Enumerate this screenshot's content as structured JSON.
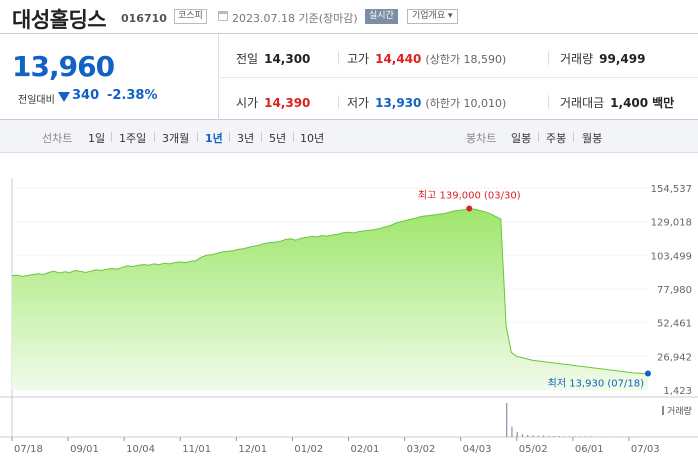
{
  "header": {
    "name": "대성홀딩스",
    "code": "016710",
    "market_badge": "코스피",
    "date": "2023.07.18 기준(장마감)",
    "live_button": "실시간",
    "info_button": "기업개요 ▾"
  },
  "price": {
    "current": "13,960",
    "change_label": "전일대비",
    "change_value": "340",
    "change_pct": "-2.38%"
  },
  "stats": {
    "prev_close": {
      "label": "전일",
      "value": "14,300"
    },
    "high": {
      "label": "고가",
      "value": "14,440",
      "sub": "(상한가 18,590)"
    },
    "volume": {
      "label": "거래량",
      "value": "99,499"
    },
    "open": {
      "label": "시가",
      "value": "14,390"
    },
    "low": {
      "label": "저가",
      "value": "13,930",
      "sub": "(하한가 10,010)"
    },
    "amount": {
      "label": "거래대금",
      "value": "1,400",
      "unit": "백만"
    }
  },
  "period_bar": {
    "line_label": "선차트",
    "line_items": [
      "1일",
      "1주일",
      "3개월",
      "1년",
      "3년",
      "5년",
      "10년"
    ],
    "active": "1년",
    "candle_label": "봉차트",
    "candle_items": [
      "일봉",
      "주봉",
      "월봉"
    ]
  },
  "colors": {
    "accent_blue": "#1261c4",
    "up_red": "#e02020",
    "area_line": "#6cc440",
    "area_fill_top": "#9ee66b",
    "area_fill_bottom": "#f1fbe9"
  },
  "chart_data": {
    "type": "area",
    "ylim": [
      1423,
      154537
    ],
    "y_ticks": [
      "154,537",
      "129,018",
      "103,499",
      "77,980",
      "52,461",
      "26,942",
      "1,423"
    ],
    "x_ticks": [
      "07/18",
      "09/01",
      "10/04",
      "11/01",
      "12/01",
      "01/02",
      "02/01",
      "03/02",
      "04/03",
      "05/02",
      "06/01",
      "07/03"
    ],
    "high_label": "최고 139,000 (03/30)",
    "low_label": "최저 13,930 (07/18)",
    "volume_label": "거래량",
    "series": [
      {
        "values": [
          88000,
          88500,
          87500,
          88200,
          89000,
          89500,
          89000,
          90500,
          91500,
          90000,
          91000,
          90500,
          92000,
          91500,
          90500,
          91500,
          92500,
          92000,
          93000,
          93500,
          93000,
          94500,
          95500,
          95000,
          96000,
          96500,
          96000,
          97000,
          96500,
          97500,
          97000,
          98000,
          98500,
          98000,
          99000,
          99500,
          102000,
          103500,
          104000,
          105000,
          106000,
          106500,
          107000,
          108000,
          108500,
          109500,
          110500,
          111000,
          112500,
          113000,
          113500,
          114000,
          115500,
          116000,
          115000,
          116500,
          117000,
          118000,
          117500,
          118500,
          118000,
          119000,
          119500,
          120500,
          121000,
          120500,
          121500,
          122000,
          122500,
          123000,
          124000,
          125000,
          126000,
          128000,
          129000,
          130000,
          131000,
          132000,
          133000,
          133500,
          134000,
          134500,
          135000,
          136000,
          137000,
          137500,
          138000,
          139000,
          138500,
          137500,
          136500,
          135000,
          133000,
          131000,
          50000,
          30000,
          27000,
          26000,
          25000,
          24000,
          23500,
          23000,
          22500,
          22000,
          21500,
          21000,
          20500,
          20000,
          19500,
          19000,
          18500,
          18000,
          17500,
          17000,
          16500,
          16000,
          15500,
          15000,
          14500,
          14200,
          14000,
          13960
        ]
      },
      {
        "name": "거래량",
        "values": [
          0,
          0,
          0,
          0,
          0,
          0,
          0,
          0,
          0,
          0,
          0,
          0,
          0,
          0,
          0,
          0,
          0,
          0,
          0,
          0,
          0,
          0,
          0,
          0,
          0,
          0,
          0,
          0,
          0,
          0,
          0,
          0,
          0,
          0,
          0,
          0,
          0,
          0,
          0,
          0,
          0,
          0,
          0,
          0,
          0,
          0,
          0,
          0,
          0,
          0,
          0,
          0,
          0,
          0,
          0,
          0,
          0,
          0,
          0,
          0,
          0,
          0,
          0,
          0,
          0,
          0,
          0,
          0,
          0,
          0,
          0,
          0,
          0,
          0,
          0,
          0,
          0,
          0,
          0,
          0,
          0,
          0,
          0,
          0,
          0,
          0,
          0,
          0,
          0,
          0,
          0,
          0,
          0,
          1,
          100,
          30,
          15,
          8,
          6,
          5,
          4,
          4,
          3,
          3,
          3,
          2,
          2,
          2,
          2,
          2,
          2,
          1,
          1,
          1,
          1,
          1,
          1,
          1,
          1,
          1,
          1,
          1
        ]
      }
    ]
  }
}
